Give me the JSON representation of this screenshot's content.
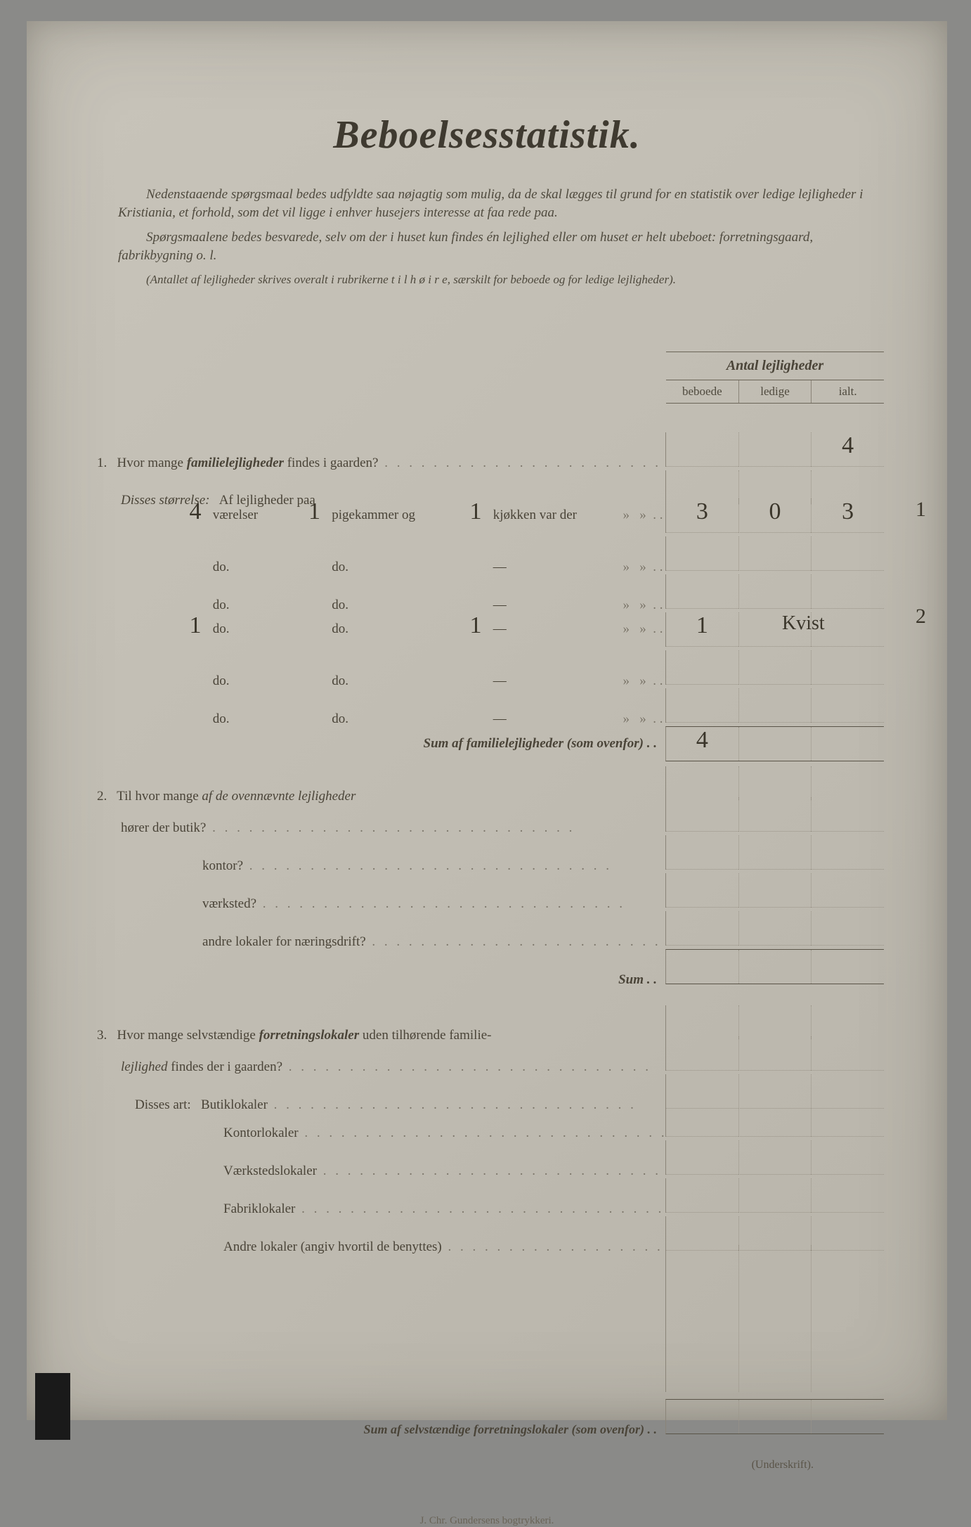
{
  "title": "Beboelsesstatistik.",
  "intro": [
    "Nedenstaaende spørgsmaal bedes udfyldte saa nøjagtig som mulig, da de skal lægges til grund for en statistik over ledige lejligheder i Kristiania, et forhold, som det vil ligge i enhver husejers interesse at faa rede paa.",
    "Spørgsmaalene bedes besvarede, selv om der i huset kun findes én lejlighed eller om huset er helt ubeboet: forretningsgaard, fabrikbygning o. l.",
    "(Antallet af lejligheder skrives overalt i rubrikerne t i l  h ø i r e, særskilt for beboede og for ledige lejligheder)."
  ],
  "header": {
    "group": "Antal lejligheder",
    "cols": [
      "beboede",
      "ledige",
      "ialt."
    ]
  },
  "q1": {
    "num": "1.",
    "line": "Hvor mange familielejligheder findes i gaarden?",
    "line_prefix": "Hvor mange ",
    "line_bold": "familielejligheder",
    "line_suffix": " findes i gaarden?",
    "ialt_total": "4",
    "disses": "Disses størrelse:",
    "af": "Af lejligheder paa",
    "rows": [
      {
        "v": "4",
        "v_label": "værelser",
        "p": "1",
        "p_label": "pigekammer og",
        "k": "1",
        "k_label": "kjøkken var der",
        "beboede": "3",
        "ledige": "0",
        "ialt": "3"
      },
      {
        "v": "",
        "v_label": "do.",
        "p": "",
        "p_label": "do.",
        "k": "",
        "k_label": "—",
        "beboede": "",
        "ledige": "",
        "ialt": ""
      },
      {
        "v": "",
        "v_label": "do.",
        "p": "",
        "p_label": "do.",
        "k": "",
        "k_label": "—",
        "beboede": "",
        "ledige": "",
        "ialt": ""
      },
      {
        "v": "1",
        "v_label": "do.",
        "p": "",
        "p_label": "do.",
        "k": "1",
        "k_label": "—",
        "beboede": "1",
        "ledige": "",
        "ialt": ""
      },
      {
        "v": "",
        "v_label": "do.",
        "p": "",
        "p_label": "do.",
        "k": "",
        "k_label": "—",
        "beboede": "",
        "ledige": "",
        "ialt": ""
      },
      {
        "v": "",
        "v_label": "do.",
        "p": "",
        "p_label": "do.",
        "k": "",
        "k_label": "—",
        "beboede": "",
        "ledige": "",
        "ialt": ""
      }
    ],
    "sum_label": "Sum af familielejligheder (som ovenfor) . .",
    "sum_beboede": "4",
    "row4_note": "Kvist",
    "margin_right_1": "1",
    "margin_right_2": "2"
  },
  "q2": {
    "num": "2.",
    "line_prefix": "Til hvor mange ",
    "line_ital": "af de ovennævnte lejligheder",
    "line2": "hører der butik?",
    "items": [
      "kontor?",
      "værksted?",
      "andre lokaler for næringsdrift?"
    ],
    "sum": "Sum . ."
  },
  "q3": {
    "num": "3.",
    "line_prefix": "Hvor mange selvstændige ",
    "line_bold": "forretningslokaler",
    "line_suffix": " uden tilhørende familie-",
    "line2_ital": "lejlighed",
    "line2_suffix": " findes der i gaarden?",
    "disses": "Disses art:",
    "items": [
      "Butiklokaler",
      "Kontorlokaler",
      "Værkstedslokaler",
      "Fabriklokaler",
      "Andre lokaler (angiv hvortil de benyttes)"
    ],
    "sum": "Sum af selvstændige forretningslokaler (som ovenfor) . ."
  },
  "signature": "(Underskrift).",
  "printer": "J. Chr. Gundersens bogtrykkeri.",
  "colors": {
    "paper": "#c2beb4",
    "ink": "#4a4438",
    "rule": "#6b6558"
  }
}
